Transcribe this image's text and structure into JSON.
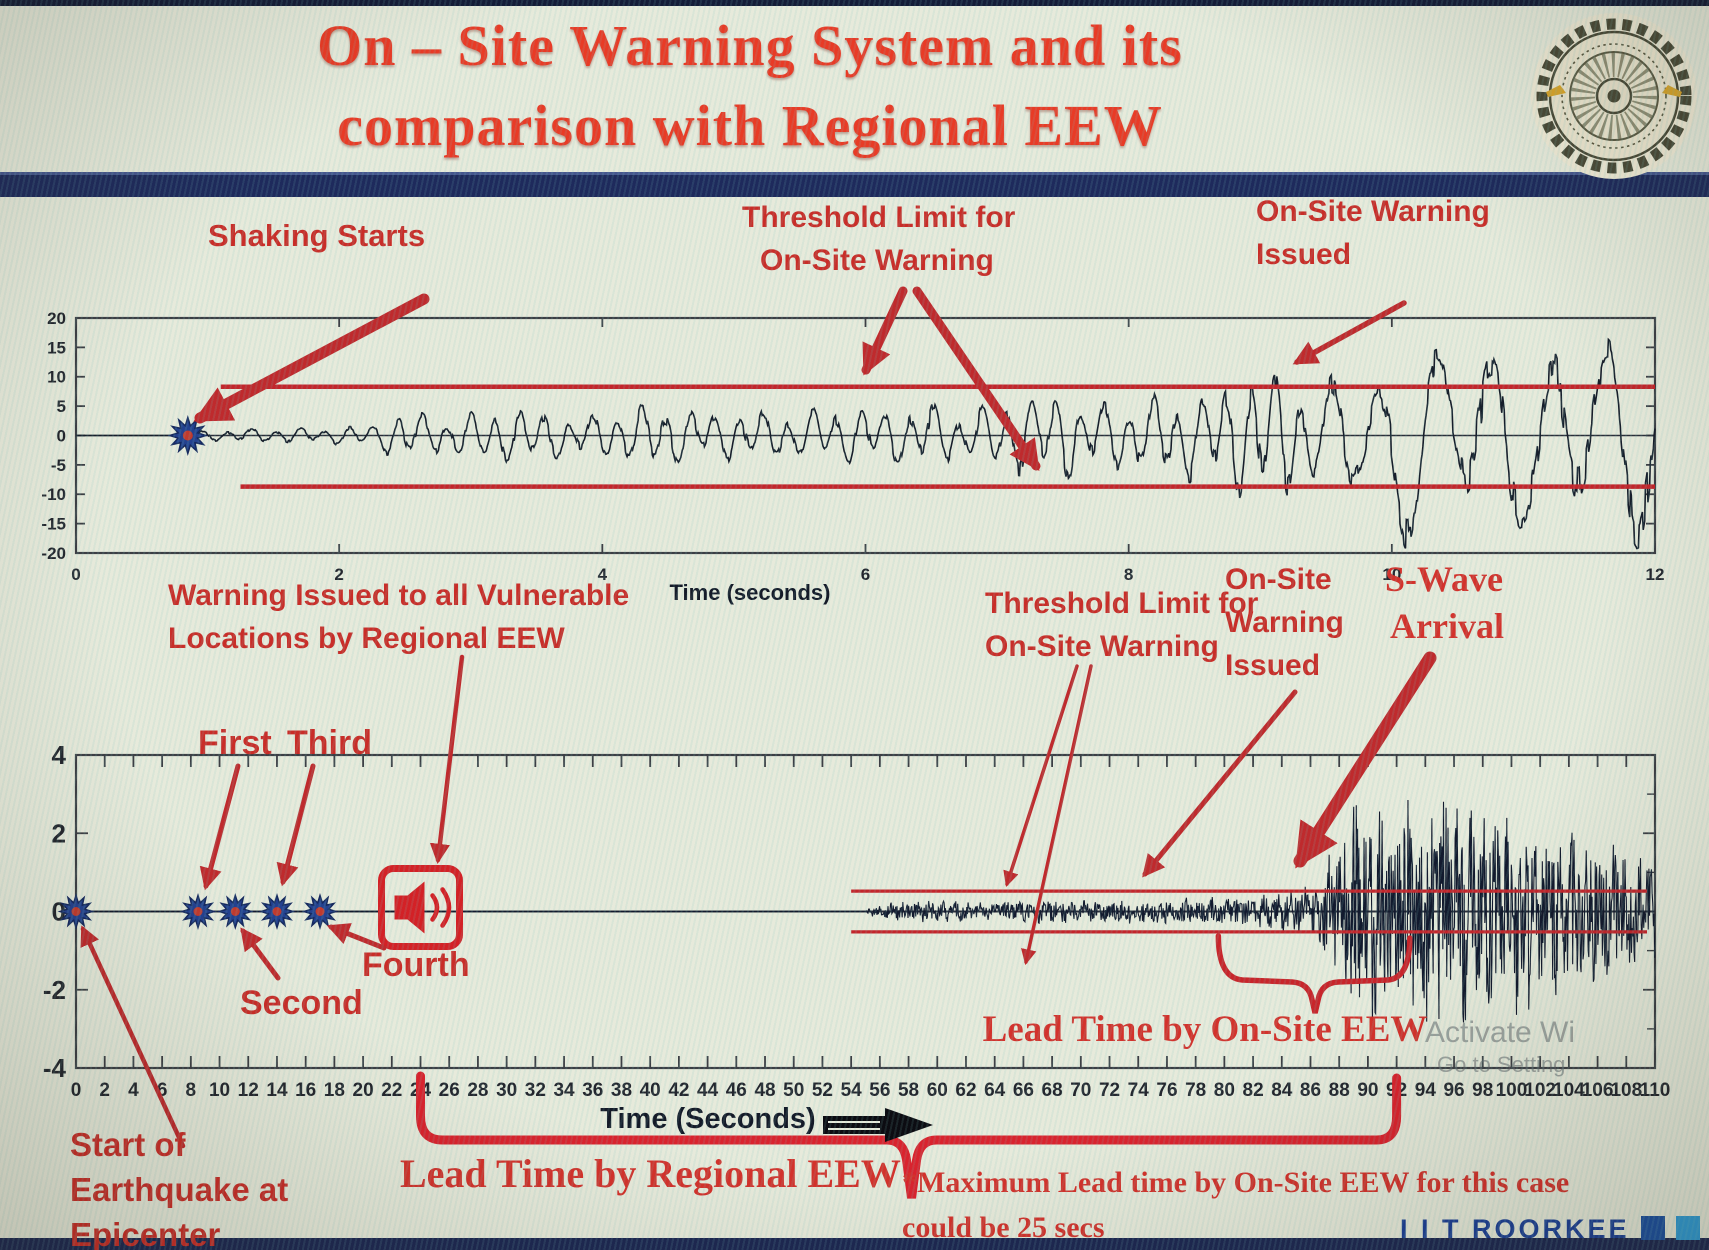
{
  "slide_title": {
    "line1": "On – Site Warning System and its",
    "line2": "comparison with Regional EEW"
  },
  "logo_name": "iit-roorkee-emblem",
  "top_chart_annotations": {
    "shaking_starts": "Shaking Starts",
    "threshold_line1": "Threshold Limit for",
    "threshold_line2": "On-Site Warning",
    "warning_line1": "On-Site Warning",
    "warning_line2": "Issued"
  },
  "bottom_chart_annotations": {
    "regional_line1": "Warning Issued to all Vulnerable",
    "regional_line2": "Locations by Regional EEW",
    "first": "First",
    "second": "Second",
    "third": "Third",
    "fourth": "Fourth",
    "threshold_line1": "Threshold Limit for",
    "threshold_line2": "On-Site Warning",
    "onsite_line1": "On-Site",
    "onsite_line2": "Warning",
    "onsite_line3": "Issued",
    "swave_line1": "S-Wave",
    "swave_line2": "Arrival",
    "lead_onsite": "Lead Time by On-Site EEW",
    "lead_regional": "Lead Time by Regional EEW",
    "start_line1": "Start of",
    "start_line2": "Earthquake at",
    "start_line3": "Epicenter",
    "footnote_line1": "*Maximum Lead time by On-Site EEW for this case",
    "footnote_line2": "could be 25 secs"
  },
  "footer": {
    "brand": "I I T ROORKEE",
    "square_colors": [
      "#1b4fa0",
      "#2f9bd6",
      "#17694d"
    ]
  },
  "watermark": {
    "line1": "Activate Wi",
    "line2": "Go to Setting"
  },
  "colors": {
    "title_red": "#e83b26",
    "annotation_red": "#c92d28",
    "threshold_red": "#c3252b",
    "arrow_red": "#bf2a2d",
    "wave_navy": "#161e2b",
    "navy_bar": "#1e2a5c",
    "marker_blue": "#23418f",
    "alarm_red": "#d32126"
  },
  "chart_data": [
    {
      "type": "line",
      "name": "on-site-seismogram-zoom",
      "title": "",
      "xlabel": "Time (seconds)",
      "ylabel": "",
      "xlim": [
        0,
        12
      ],
      "ylim": [
        -20,
        20
      ],
      "xticks": [
        0,
        2,
        4,
        6,
        8,
        10,
        12
      ],
      "yticks": [
        20,
        15,
        10,
        5,
        0,
        -5,
        -10,
        -15,
        -20
      ],
      "grid": false,
      "series": [
        {
          "name": "ground-acceleration",
          "color": "#161e2b"
        }
      ],
      "thresholds": {
        "upper": 8.3,
        "lower": -8.7,
        "start_x": 1.1,
        "color": "#c3252b"
      },
      "events": {
        "shaking_starts_x": 0.85,
        "onsite_warning_issued_x": 9.2
      },
      "envelope": [
        [
          0,
          0
        ],
        [
          0.8,
          0
        ],
        [
          0.86,
          0.5
        ],
        [
          1.0,
          0.8
        ],
        [
          1.4,
          1.0
        ],
        [
          1.9,
          1.2
        ],
        [
          2.3,
          1.6
        ],
        [
          2.45,
          3.9
        ],
        [
          2.7,
          2.8
        ],
        [
          3.0,
          3.3
        ],
        [
          3.35,
          4.4
        ],
        [
          3.7,
          3.0
        ],
        [
          4.1,
          3.4
        ],
        [
          4.45,
          4.8
        ],
        [
          4.8,
          3.3
        ],
        [
          5.1,
          4.1
        ],
        [
          5.45,
          3.3
        ],
        [
          5.8,
          4.4
        ],
        [
          6.1,
          3.7
        ],
        [
          6.45,
          4.6
        ],
        [
          6.8,
          3.9
        ],
        [
          7.1,
          5.3
        ],
        [
          7.45,
          6.4
        ],
        [
          7.8,
          4.7
        ],
        [
          8.1,
          5.4
        ],
        [
          8.45,
          6.2
        ],
        [
          8.75,
          7.4
        ],
        [
          9.0,
          9.8
        ],
        [
          9.2,
          9.0
        ],
        [
          9.45,
          6.8
        ],
        [
          9.7,
          9.5
        ],
        [
          9.95,
          13.5
        ],
        [
          10.2,
          16.5
        ],
        [
          10.45,
          11
        ],
        [
          10.7,
          17.5
        ],
        [
          11.0,
          12.5
        ],
        [
          11.3,
          16.5
        ],
        [
          11.55,
          13
        ],
        [
          11.8,
          16.5
        ],
        [
          12,
          14.5
        ]
      ]
    },
    {
      "type": "line",
      "name": "regional-vs-onsite-timeline",
      "title": "",
      "xlabel": "Time (Seconds)",
      "ylabel": "",
      "xlim": [
        0,
        110
      ],
      "ylim": [
        -4,
        4
      ],
      "xticks": [
        0,
        2,
        4,
        6,
        8,
        10,
        12,
        14,
        16,
        18,
        20,
        22,
        24,
        26,
        28,
        30,
        32,
        34,
        36,
        38,
        40,
        42,
        44,
        46,
        48,
        50,
        52,
        54,
        56,
        58,
        60,
        62,
        64,
        66,
        68,
        70,
        72,
        74,
        76,
        78,
        80,
        82,
        84,
        86,
        88,
        90,
        92,
        94,
        96,
        98,
        100,
        102,
        104,
        106,
        108,
        110
      ],
      "yticks": [
        4,
        2,
        0,
        -2,
        -4
      ],
      "grid": false,
      "series": [
        {
          "name": "ground-acceleration",
          "color": "#121a2e"
        }
      ],
      "thresholds": {
        "upper": 0.52,
        "lower": -0.52,
        "start_x": 54,
        "color": "#c3252b"
      },
      "events": {
        "epicenter_x": 0,
        "stations": [
          {
            "label": "First",
            "x": 8.5
          },
          {
            "label": "Second",
            "x": 11.1
          },
          {
            "label": "Third",
            "x": 14
          },
          {
            "label": "Fourth",
            "x": 17
          }
        ],
        "regional_warning_x": 24,
        "p_wave_start_x": 55.3,
        "onsite_warning_x": 74,
        "s_wave_arrival_x": 88
      },
      "lead_times": {
        "regional": {
          "from": 24,
          "to": 92,
          "max_onsite_lead_secs": 25
        },
        "onsite": {
          "from": 80,
          "to": 92.5
        }
      },
      "envelope": [
        [
          0,
          0
        ],
        [
          55,
          0
        ],
        [
          55.3,
          0.1
        ],
        [
          57,
          0.2
        ],
        [
          60,
          0.24
        ],
        [
          64,
          0.22
        ],
        [
          68,
          0.26
        ],
        [
          72,
          0.24
        ],
        [
          76,
          0.3
        ],
        [
          80,
          0.32
        ],
        [
          83,
          0.38
        ],
        [
          85,
          0.5
        ],
        [
          86.5,
          0.7
        ],
        [
          87.5,
          1.4
        ],
        [
          88.5,
          2.3
        ],
        [
          90,
          2.7
        ],
        [
          91.5,
          2.2
        ],
        [
          93,
          2.8
        ],
        [
          94.5,
          2.4
        ],
        [
          96,
          2.6
        ],
        [
          98,
          2.2
        ],
        [
          100,
          2.4
        ],
        [
          102,
          2.0
        ],
        [
          104,
          1.9
        ],
        [
          106,
          1.6
        ],
        [
          108,
          1.5
        ],
        [
          110,
          1.4
        ]
      ]
    }
  ]
}
